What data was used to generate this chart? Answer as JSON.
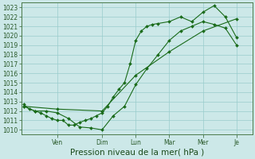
{
  "xlabel": "Pression niveau de la mer( hPa )",
  "bg_color": "#cce8e8",
  "grid_color": "#99cccc",
  "line_color": "#1a6b1a",
  "marker_color": "#1a6b1a",
  "ylim": [
    1009.5,
    1023.5
  ],
  "yticks": [
    1010,
    1011,
    1012,
    1013,
    1014,
    1015,
    1016,
    1017,
    1018,
    1019,
    1020,
    1021,
    1022,
    1023
  ],
  "x_tick_positions": [
    1.5,
    3.5,
    5.0,
    6.5,
    8.0,
    9.5
  ],
  "x_tick_labels": [
    "Ven",
    "Dim",
    "Lun",
    "Mar",
    "Mer",
    "Je"
  ],
  "xlim": [
    -0.1,
    10.2
  ],
  "line1_x": [
    0.0,
    0.25,
    0.5,
    0.75,
    1.0,
    1.25,
    1.5,
    1.75,
    2.0,
    2.25,
    2.5,
    2.75,
    3.0,
    3.25,
    3.5,
    3.75,
    4.0,
    4.25,
    4.5,
    4.75,
    5.0,
    5.25,
    5.5,
    5.75,
    6.0,
    6.5,
    7.0,
    7.5,
    8.0,
    8.5,
    9.0,
    9.5
  ],
  "line1_y": [
    1012.7,
    1012.2,
    1012.0,
    1011.8,
    1011.5,
    1011.2,
    1011.0,
    1011.0,
    1010.5,
    1010.5,
    1010.8,
    1011.0,
    1011.2,
    1011.5,
    1011.8,
    1012.5,
    1013.5,
    1014.3,
    1015.0,
    1017.0,
    1019.5,
    1020.5,
    1021.0,
    1021.2,
    1021.3,
    1021.5,
    1022.0,
    1021.5,
    1022.5,
    1023.2,
    1022.0,
    1019.8
  ],
  "line2_x": [
    0.0,
    0.5,
    1.0,
    1.5,
    2.0,
    2.5,
    3.0,
    3.5,
    4.0,
    4.5,
    5.0,
    5.5,
    6.0,
    6.5,
    7.0,
    7.5,
    8.0,
    8.5,
    9.0,
    9.5
  ],
  "line2_y": [
    1012.5,
    1012.0,
    1012.0,
    1011.8,
    1011.2,
    1010.3,
    1010.2,
    1010.0,
    1011.5,
    1012.5,
    1014.8,
    1016.5,
    1018.0,
    1019.5,
    1020.5,
    1021.0,
    1021.5,
    1021.2,
    1020.8,
    1019.0
  ],
  "line3_x": [
    0.0,
    1.5,
    3.5,
    5.0,
    6.5,
    8.0,
    9.5
  ],
  "line3_y": [
    1012.5,
    1012.2,
    1012.0,
    1015.8,
    1018.3,
    1020.5,
    1021.8
  ],
  "tick_label_fontsize": 5.5,
  "xlabel_fontsize": 7.5,
  "marker_size": 2.0,
  "linewidth": 0.8
}
